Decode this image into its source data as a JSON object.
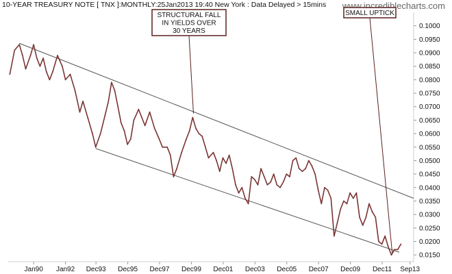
{
  "header": {
    "title": "10-YEAR TREASURY NOTE [ TNX ]:MONTHLY:25Jan2013 19:40 New York : Data Delayed > 15mins",
    "watermark": "www.incrediblecharts.com"
  },
  "colors": {
    "series": "#7a3434",
    "trendline": "#555555",
    "axis": "#cfcfcf",
    "annotation_border": "#5a1f1f",
    "text": "#111111"
  },
  "chart_data": {
    "type": "line",
    "title": "10-YEAR TREASURY NOTE [ TNX ]:MONTHLY:25Jan2013 19:40 New York : Data Delayed > 15mins",
    "xlabel": "",
    "ylabel": "",
    "ylim": [
      0.0125,
      0.105
    ],
    "xlim": [
      1988.4,
      2013.9
    ],
    "x_ticks": [
      {
        "label": "Jan90",
        "value": 1990.0
      },
      {
        "label": "Jan92",
        "value": 1992.0
      },
      {
        "label": "Dec93",
        "value": 1993.92
      },
      {
        "label": "Dec95",
        "value": 1995.92
      },
      {
        "label": "Dec97",
        "value": 1997.92
      },
      {
        "label": "Dec99",
        "value": 1999.92
      },
      {
        "label": "Dec01",
        "value": 2001.92
      },
      {
        "label": "Dec03",
        "value": 2003.92
      },
      {
        "label": "Dec05",
        "value": 2005.92
      },
      {
        "label": "Dec07",
        "value": 2007.92
      },
      {
        "label": "Dec09",
        "value": 2009.92
      },
      {
        "label": "Dec11",
        "value": 2011.92
      },
      {
        "label": "Sep13",
        "value": 2013.67
      }
    ],
    "y_ticks": [
      {
        "label": "0.1000",
        "value": 0.1
      },
      {
        "label": "0.0950",
        "value": 0.095
      },
      {
        "label": "0.0900",
        "value": 0.09
      },
      {
        "label": "0.0850",
        "value": 0.085
      },
      {
        "label": "0.0800",
        "value": 0.08
      },
      {
        "label": "0.0750",
        "value": 0.075
      },
      {
        "label": "0.0700",
        "value": 0.07
      },
      {
        "label": "0.0650",
        "value": 0.065
      },
      {
        "label": "0.0600",
        "value": 0.06
      },
      {
        "label": "0.0550",
        "value": 0.055
      },
      {
        "label": "0.0500",
        "value": 0.05
      },
      {
        "label": "0.0450",
        "value": 0.045
      },
      {
        "label": "0.0400",
        "value": 0.04
      },
      {
        "label": "0.0350",
        "value": 0.035
      },
      {
        "label": "0.0300",
        "value": 0.03
      },
      {
        "label": "0.0250",
        "value": 0.025
      },
      {
        "label": "0.0200",
        "value": 0.02
      },
      {
        "label": "0.0150",
        "value": 0.015
      }
    ],
    "grid": false,
    "series": [
      {
        "points": [
          [
            1988.5,
            0.082
          ],
          [
            1988.8,
            0.091
          ],
          [
            1989.1,
            0.093
          ],
          [
            1989.3,
            0.089
          ],
          [
            1989.5,
            0.084
          ],
          [
            1989.8,
            0.089
          ],
          [
            1990.0,
            0.093
          ],
          [
            1990.2,
            0.088
          ],
          [
            1990.4,
            0.085
          ],
          [
            1990.6,
            0.088
          ],
          [
            1990.8,
            0.083
          ],
          [
            1991.0,
            0.08
          ],
          [
            1991.2,
            0.083
          ],
          [
            1991.5,
            0.089
          ],
          [
            1991.8,
            0.085
          ],
          [
            1992.0,
            0.08
          ],
          [
            1992.3,
            0.082
          ],
          [
            1992.6,
            0.076
          ],
          [
            1992.9,
            0.068
          ],
          [
            1993.1,
            0.072
          ],
          [
            1993.4,
            0.066
          ],
          [
            1993.7,
            0.06
          ],
          [
            1993.9,
            0.055
          ],
          [
            1994.2,
            0.06
          ],
          [
            1994.5,
            0.067
          ],
          [
            1994.7,
            0.072
          ],
          [
            1994.9,
            0.079
          ],
          [
            1995.1,
            0.076
          ],
          [
            1995.3,
            0.07
          ],
          [
            1995.5,
            0.064
          ],
          [
            1995.7,
            0.061
          ],
          [
            1995.9,
            0.056
          ],
          [
            1996.1,
            0.058
          ],
          [
            1996.3,
            0.065
          ],
          [
            1996.6,
            0.069
          ],
          [
            1996.8,
            0.066
          ],
          [
            1997.0,
            0.063
          ],
          [
            1997.3,
            0.068
          ],
          [
            1997.6,
            0.062
          ],
          [
            1997.9,
            0.058
          ],
          [
            1998.1,
            0.055
          ],
          [
            1998.4,
            0.055
          ],
          [
            1998.6,
            0.052
          ],
          [
            1998.8,
            0.044
          ],
          [
            1999.0,
            0.047
          ],
          [
            1999.3,
            0.053
          ],
          [
            1999.6,
            0.058
          ],
          [
            1999.8,
            0.061
          ],
          [
            2000.0,
            0.066
          ],
          [
            2000.2,
            0.062
          ],
          [
            2000.4,
            0.06
          ],
          [
            2000.6,
            0.059
          ],
          [
            2000.8,
            0.055
          ],
          [
            2001.0,
            0.051
          ],
          [
            2001.3,
            0.053
          ],
          [
            2001.5,
            0.05
          ],
          [
            2001.7,
            0.046
          ],
          [
            2001.9,
            0.051
          ],
          [
            2002.1,
            0.049
          ],
          [
            2002.3,
            0.052
          ],
          [
            2002.5,
            0.047
          ],
          [
            2002.7,
            0.041
          ],
          [
            2002.9,
            0.038
          ],
          [
            2003.1,
            0.04
          ],
          [
            2003.3,
            0.036
          ],
          [
            2003.5,
            0.034
          ],
          [
            2003.7,
            0.044
          ],
          [
            2003.9,
            0.043
          ],
          [
            2004.1,
            0.041
          ],
          [
            2004.3,
            0.047
          ],
          [
            2004.5,
            0.044
          ],
          [
            2004.7,
            0.041
          ],
          [
            2004.9,
            0.042
          ],
          [
            2005.1,
            0.045
          ],
          [
            2005.3,
            0.041
          ],
          [
            2005.5,
            0.04
          ],
          [
            2005.7,
            0.042
          ],
          [
            2005.9,
            0.045
          ],
          [
            2006.1,
            0.044
          ],
          [
            2006.3,
            0.05
          ],
          [
            2006.5,
            0.051
          ],
          [
            2006.7,
            0.047
          ],
          [
            2006.9,
            0.046
          ],
          [
            2007.1,
            0.047
          ],
          [
            2007.3,
            0.05
          ],
          [
            2007.5,
            0.048
          ],
          [
            2007.7,
            0.045
          ],
          [
            2007.9,
            0.039
          ],
          [
            2008.1,
            0.034
          ],
          [
            2008.3,
            0.04
          ],
          [
            2008.5,
            0.039
          ],
          [
            2008.7,
            0.036
          ],
          [
            2008.9,
            0.022
          ],
          [
            2009.1,
            0.027
          ],
          [
            2009.3,
            0.032
          ],
          [
            2009.5,
            0.035
          ],
          [
            2009.7,
            0.034
          ],
          [
            2009.9,
            0.038
          ],
          [
            2010.1,
            0.036
          ],
          [
            2010.3,
            0.038
          ],
          [
            2010.5,
            0.029
          ],
          [
            2010.7,
            0.026
          ],
          [
            2010.9,
            0.029
          ],
          [
            2011.1,
            0.034
          ],
          [
            2011.3,
            0.031
          ],
          [
            2011.5,
            0.029
          ],
          [
            2011.7,
            0.02
          ],
          [
            2011.9,
            0.019
          ],
          [
            2012.1,
            0.022
          ],
          [
            2012.3,
            0.018
          ],
          [
            2012.5,
            0.015
          ],
          [
            2012.7,
            0.017
          ],
          [
            2012.9,
            0.017
          ],
          [
            2013.1,
            0.019
          ]
        ]
      }
    ],
    "trendlines": [
      {
        "name": "upper-channel-line",
        "from": [
          1989.1,
          0.0935
        ],
        "to": [
          2013.9,
          0.036
        ]
      },
      {
        "name": "lower-channel-line",
        "from": [
          1993.9,
          0.0545
        ],
        "to": [
          2013.0,
          0.016
        ]
      }
    ],
    "annotations": [
      {
        "name": "structural-fall-callout",
        "lines": [
          "STRUCTURAL FALL",
          "IN YIELDS OVER",
          "30 YEARS"
        ],
        "target": [
          2000.05,
          0.0675
        ]
      },
      {
        "name": "small-uptick-callout",
        "lines": [
          "SMALL UPTICK"
        ],
        "target": [
          2012.55,
          0.0158
        ]
      }
    ]
  }
}
